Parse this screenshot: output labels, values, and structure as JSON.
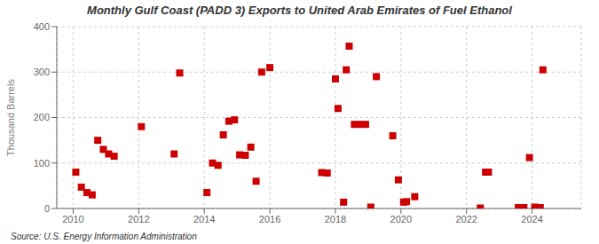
{
  "chart_data": {
    "type": "scatter",
    "title": "Monthly Gulf Coast (PADD 3) Exports to United Arab Emirates of Fuel Ethanol",
    "ylabel": "Thousand Barrels",
    "source": "Source: U.S. Energy Information Administration",
    "color": "#cc0000",
    "marker": "square",
    "grid": true,
    "xlim": [
      2009.5,
      2025.5
    ],
    "ylim": [
      0,
      400
    ],
    "xticks": [
      2010,
      2012,
      2014,
      2016,
      2018,
      2020,
      2022,
      2024
    ],
    "yticks": [
      0,
      100,
      200,
      300,
      400
    ],
    "x": [
      2010.08,
      2010.25,
      2010.42,
      2010.58,
      2010.75,
      2010.92,
      2011.08,
      2011.25,
      2012.08,
      2013.08,
      2013.25,
      2014.08,
      2014.25,
      2014.42,
      2014.58,
      2014.75,
      2014.92,
      2015.08,
      2015.25,
      2015.42,
      2015.58,
      2015.75,
      2016.0,
      2017.58,
      2017.75,
      2018.0,
      2018.08,
      2018.25,
      2018.33,
      2018.42,
      2018.58,
      2018.75,
      2018.92,
      2019.08,
      2019.25,
      2019.75,
      2019.92,
      2020.08,
      2020.17,
      2020.42,
      2022.42,
      2022.58,
      2022.67,
      2023.58,
      2023.67,
      2023.75,
      2023.92,
      2024.08,
      2024.17,
      2024.25,
      2024.33
    ],
    "values": [
      80,
      47,
      35,
      30,
      150,
      130,
      120,
      115,
      180,
      120,
      298,
      35,
      100,
      95,
      162,
      192,
      195,
      118,
      117,
      135,
      60,
      300,
      310,
      79,
      78,
      285,
      220,
      14,
      305,
      357,
      185,
      185,
      185,
      3,
      290,
      160,
      63,
      14,
      15,
      26,
      1,
      80,
      80,
      2,
      1,
      2,
      112,
      3,
      2,
      2,
      305
    ]
  }
}
